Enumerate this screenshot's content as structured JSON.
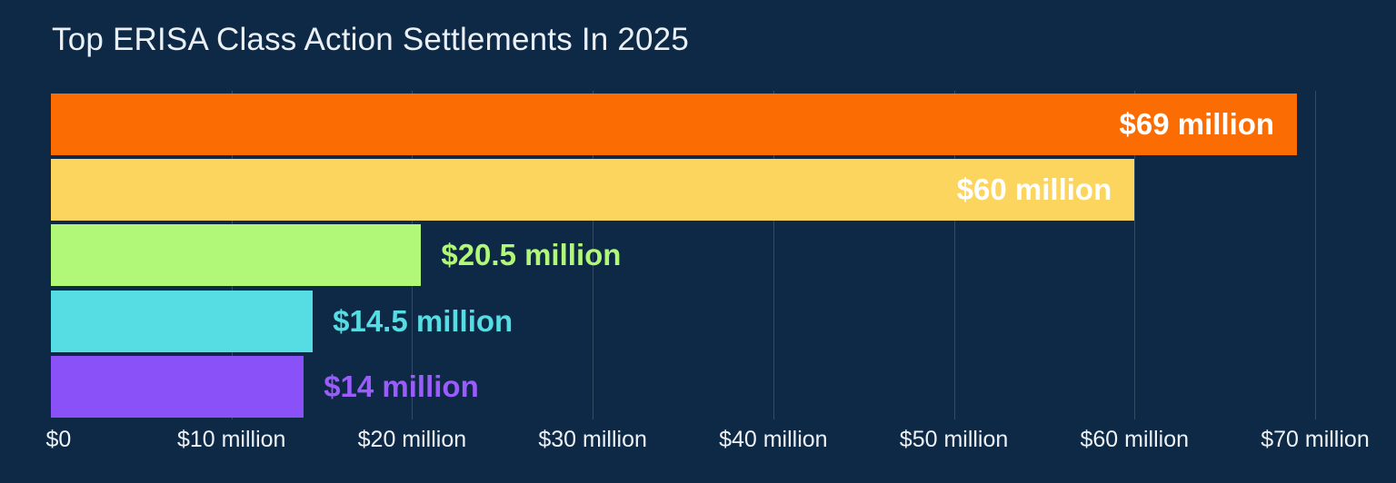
{
  "title": "Top ERISA Class Action Settlements In 2025",
  "colors": {
    "background": "#0d2946",
    "title_text": "#eaf0f5",
    "axis_text": "#eef2f6",
    "gridline": "rgba(255,255,255,0.16)"
  },
  "chart_data": {
    "type": "bar",
    "orientation": "horizontal",
    "title": "Top ERISA Class Action Settlements In 2025",
    "unit": "USD millions",
    "values": [
      69,
      60,
      20.5,
      14.5,
      14
    ],
    "value_labels": [
      "$69 million",
      "$60 million",
      "$20.5 million",
      "$14.5 million",
      "$14 million"
    ],
    "bar_colors": [
      "#fb6d02",
      "#fbd55e",
      "#b1f878",
      "#55dde3",
      "#8a51f8"
    ],
    "label_colors": [
      "#ffffff",
      "#ffffff",
      "#b1f878",
      "#55dde3",
      "#9a5cfa"
    ],
    "label_inside": [
      true,
      true,
      false,
      false,
      false
    ],
    "xlim": [
      0,
      70
    ],
    "x_ticks": [
      {
        "value": 0,
        "label": "$0"
      },
      {
        "value": 10,
        "label": "$10 million"
      },
      {
        "value": 20,
        "label": "$20 million"
      },
      {
        "value": 30,
        "label": "$30 million"
      },
      {
        "value": 40,
        "label": "$40 million"
      },
      {
        "value": 50,
        "label": "$50 million"
      },
      {
        "value": 60,
        "label": "$60 million"
      },
      {
        "value": 70,
        "label": "$70 million"
      }
    ],
    "grid": true,
    "legend": "none"
  }
}
